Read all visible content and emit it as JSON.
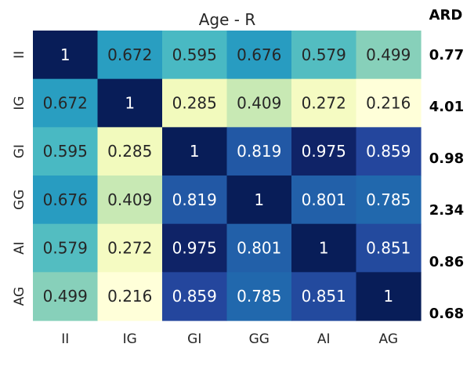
{
  "chart_data": {
    "type": "heatmap",
    "title": "Age - R",
    "rows": [
      "II",
      "IG",
      "GI",
      "GG",
      "AI",
      "AG"
    ],
    "columns": [
      "II",
      "IG",
      "GI",
      "GG",
      "AI",
      "AG"
    ],
    "values": [
      [
        "1",
        "0.672",
        "0.595",
        "0.676",
        "0.579",
        "0.499"
      ],
      [
        "0.672",
        "1",
        "0.285",
        "0.409",
        "0.272",
        "0.216"
      ],
      [
        "0.595",
        "0.285",
        "1",
        "0.819",
        "0.975",
        "0.859"
      ],
      [
        "0.676",
        "0.409",
        "0.819",
        "1",
        "0.801",
        "0.785"
      ],
      [
        "0.579",
        "0.272",
        "0.975",
        "0.801",
        "1",
        "0.851"
      ],
      [
        "0.499",
        "0.216",
        "0.859",
        "0.785",
        "0.851",
        "1"
      ]
    ],
    "colormap": "YlGnBu",
    "color_range": [
      0.216,
      1
    ],
    "grid": false,
    "side_label": "ARD",
    "side_values": [
      "0.77",
      "4.01",
      "0.98",
      "2.34",
      "0.86",
      "0.68"
    ]
  }
}
